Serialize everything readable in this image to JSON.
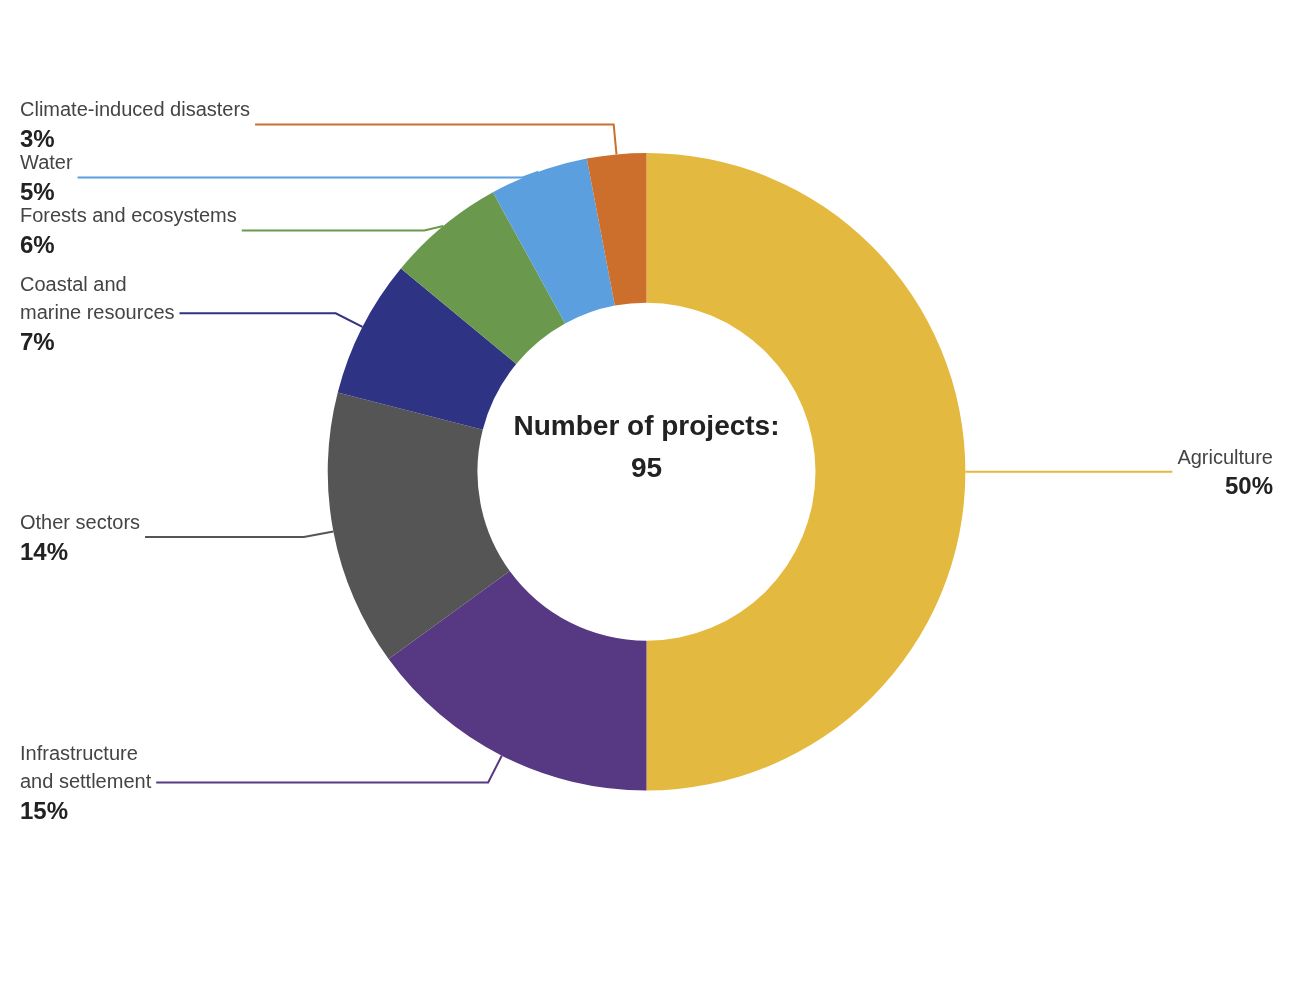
{
  "chart_data": {
    "type": "donut",
    "categories": [
      "Agriculture",
      "Infrastructure\nand settlement",
      "Other sectors",
      "Coastal and\nmarine resources",
      "Forests and ecosystems",
      "Water",
      "Climate-induced disasters"
    ],
    "values": [
      50,
      15,
      14,
      7,
      6,
      5,
      3
    ],
    "value_labels": [
      "50%",
      "15%",
      "14%",
      "7%",
      "6%",
      "5%",
      "3%"
    ],
    "colors": [
      "#e4b93f",
      "#563883",
      "#555555",
      "#2e3383",
      "#6a994e",
      "#5b9fde",
      "#cc6f2c"
    ],
    "annotations": [
      "Number of projects:\n95"
    ]
  }
}
